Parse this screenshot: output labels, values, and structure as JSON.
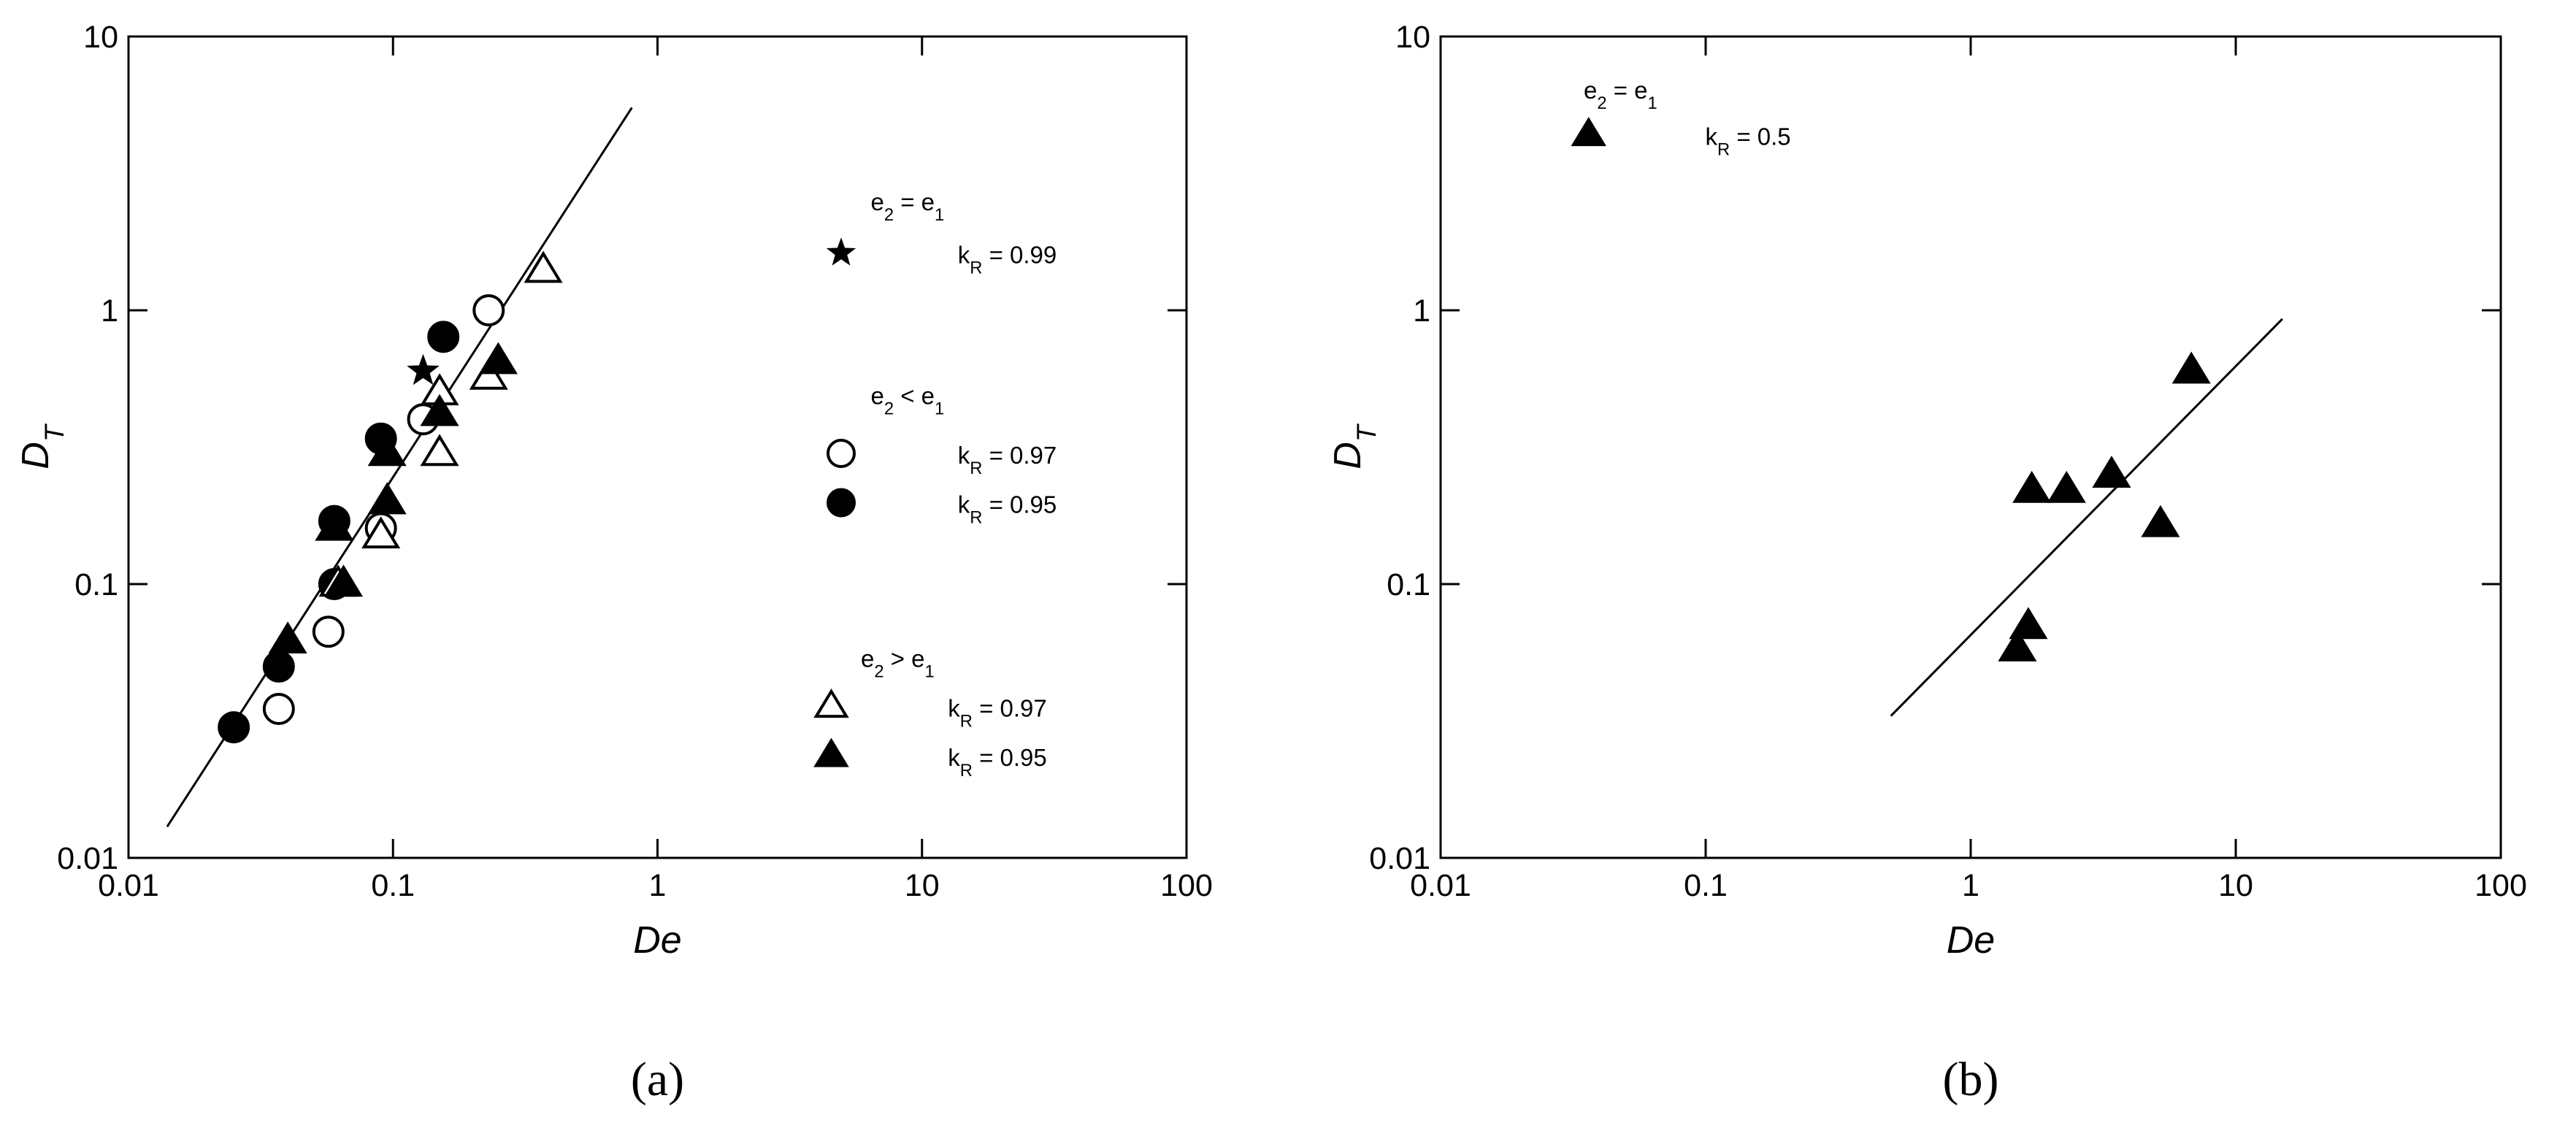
{
  "chart_data": [
    {
      "type": "scatter",
      "panel_label": "(a)",
      "xlabel": "De",
      "ylabel": [
        "D",
        "T"
      ],
      "xscale": "log",
      "yscale": "log",
      "xlim": [
        0.01,
        100
      ],
      "ylim": [
        0.01,
        10
      ],
      "xticks": [
        0.01,
        0.1,
        1,
        10,
        100
      ],
      "yticks": [
        0.01,
        0.1,
        1,
        10
      ],
      "legend_groups": [
        {
          "label": [
            "e",
            "2",
            " = e",
            "1"
          ]
        },
        {
          "label": [
            "e",
            "2",
            " < e",
            "1"
          ]
        },
        {
          "label": [
            "e",
            "2",
            " > e",
            "1"
          ]
        }
      ],
      "series": [
        {
          "name": [
            "k",
            "R",
            " = 0.99"
          ],
          "group": 0,
          "marker": "star",
          "filled": true,
          "color": "#000000",
          "x": [
            0.13
          ],
          "y": [
            0.6
          ]
        },
        {
          "name": [
            "k",
            "R",
            " = 0.97"
          ],
          "group": 1,
          "marker": "circle",
          "filled": false,
          "color": "#000000",
          "x": [
            0.037,
            0.057,
            0.09,
            0.13,
            0.23
          ],
          "y": [
            0.035,
            0.067,
            0.16,
            0.4,
            1.0
          ]
        },
        {
          "name": [
            "k",
            "R",
            " = 0.95"
          ],
          "group": 1,
          "marker": "circle",
          "filled": true,
          "color": "#000000",
          "x": [
            0.025,
            0.037,
            0.06,
            0.06,
            0.09,
            0.155
          ],
          "y": [
            0.03,
            0.05,
            0.1,
            0.17,
            0.34,
            0.8
          ]
        },
        {
          "name": [
            "k",
            "R",
            " = 0.97"
          ],
          "group": 2,
          "marker": "triangle",
          "filled": false,
          "color": "#000000",
          "x": [
            0.062,
            0.09,
            0.15,
            0.15,
            0.23,
            0.37
          ],
          "y": [
            0.1,
            0.15,
            0.3,
            0.5,
            0.57,
            1.4
          ]
        },
        {
          "name": [
            "k",
            "R",
            " = 0.95"
          ],
          "group": 2,
          "marker": "triangle",
          "filled": true,
          "color": "#000000",
          "x": [
            0.04,
            0.06,
            0.065,
            0.095,
            0.095,
            0.15,
            0.25
          ],
          "y": [
            0.062,
            0.16,
            0.1,
            0.2,
            0.3,
            0.42,
            0.65
          ]
        }
      ],
      "fit_line": {
        "x": [
          0.014,
          0.8
        ],
        "y": [
          0.013,
          5.5
        ]
      }
    },
    {
      "type": "scatter",
      "panel_label": "(b)",
      "xlabel": "De",
      "ylabel": [
        "D",
        "T"
      ],
      "xscale": "log",
      "yscale": "log",
      "xlim": [
        0.01,
        100
      ],
      "ylim": [
        0.01,
        10
      ],
      "xticks": [
        0.01,
        0.1,
        1,
        10,
        100
      ],
      "yticks": [
        0.01,
        0.1,
        1,
        10
      ],
      "legend_groups": [
        {
          "label": [
            "e",
            "2",
            " = e",
            "1"
          ]
        }
      ],
      "series": [
        {
          "name": [
            "k",
            "R",
            " = 0.5"
          ],
          "group": 0,
          "marker": "triangle",
          "filled": true,
          "color": "#000000",
          "x": [
            1.5,
            1.65,
            1.7,
            2.3,
            3.4,
            5.2,
            6.8
          ],
          "y": [
            0.058,
            0.07,
            0.22,
            0.22,
            0.25,
            0.165,
            0.6
          ]
        }
      ],
      "fit_line": {
        "x": [
          0.5,
          15
        ],
        "y": [
          0.033,
          0.93
        ]
      }
    }
  ]
}
